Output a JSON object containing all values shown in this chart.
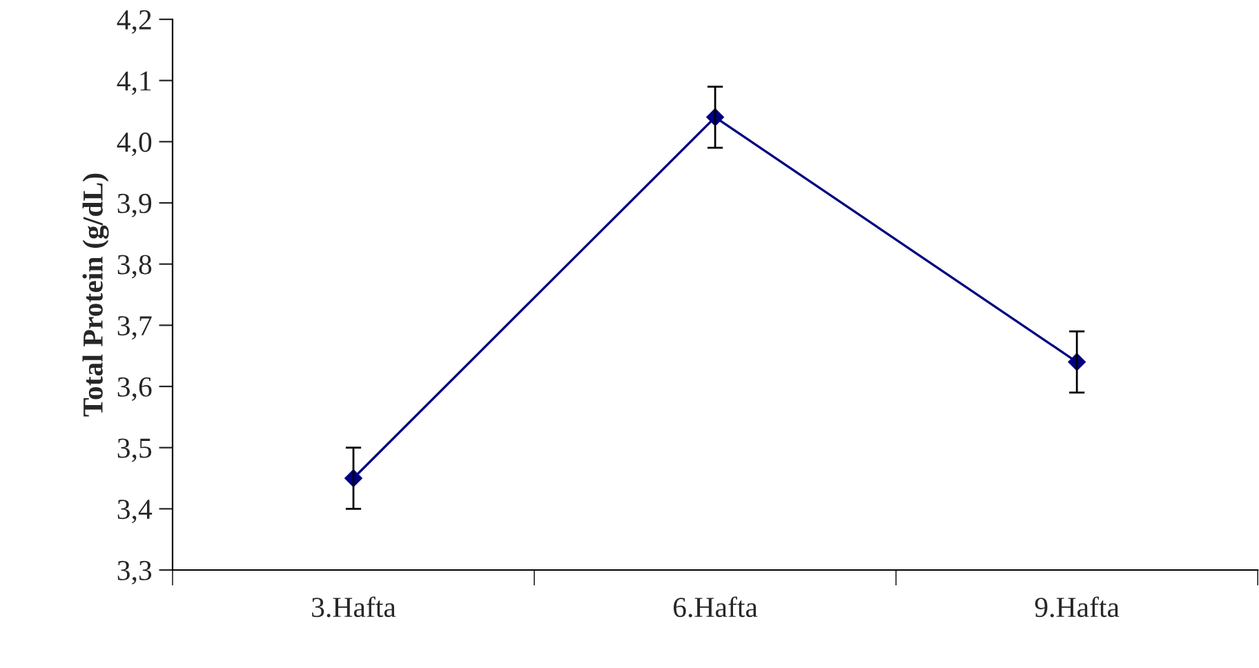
{
  "chart_data": {
    "type": "line",
    "ylabel": "Total Protein (g/dL)",
    "categories": [
      "3.Hafta",
      "6.Hafta",
      "9.Hafta"
    ],
    "series": [
      {
        "color": "#000080",
        "values": [
          3.45,
          4.04,
          3.64
        ],
        "errors": [
          0.05,
          0.05,
          0.05
        ]
      }
    ],
    "ylim": [
      3.3,
      4.2
    ],
    "yticks": [
      {
        "value": 3.3,
        "label": "3,3"
      },
      {
        "value": 3.4,
        "label": "3,4"
      },
      {
        "value": 3.5,
        "label": "3,5"
      },
      {
        "value": 3.6,
        "label": "3,6"
      },
      {
        "value": 3.7,
        "label": "3,7"
      },
      {
        "value": 3.8,
        "label": "3,8"
      },
      {
        "value": 3.9,
        "label": "3,9"
      },
      {
        "value": 4.0,
        "label": "4,0"
      },
      {
        "value": 4.1,
        "label": "4,1"
      },
      {
        "value": 4.2,
        "label": "4,2"
      }
    ],
    "marker": "diamond",
    "line_style": "solid",
    "grid": false,
    "legend": false
  }
}
